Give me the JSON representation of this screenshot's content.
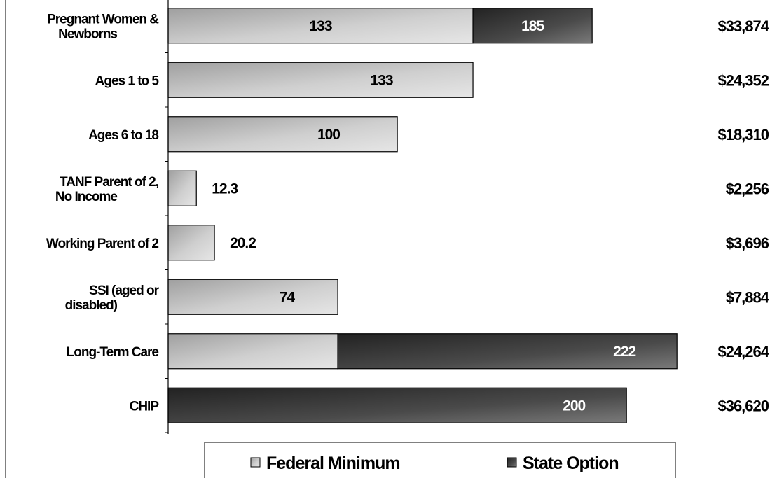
{
  "chart_data": {
    "type": "bar",
    "orientation": "horizontal",
    "stacked": true,
    "categories": [
      [
        "Pregnant Women &",
        "Newborns"
      ],
      [
        "Ages 1 to 5"
      ],
      [
        "Ages 6 to 18"
      ],
      [
        "TANF Parent of 2,",
        "No Income"
      ],
      [
        "Working Parent of 2"
      ],
      [
        "SSI (aged or",
        "disabled)"
      ],
      [
        "Long-Term Care"
      ],
      [
        "CHIP"
      ]
    ],
    "series": [
      {
        "name": "Federal Minimum",
        "color": "#c8c8c8",
        "values": [
          133,
          133,
          100,
          12.3,
          20.2,
          74,
          74,
          0
        ]
      },
      {
        "name": "State Option",
        "color": "#4a4a4a",
        "values": [
          52,
          0,
          0,
          0,
          0,
          0,
          148,
          200
        ]
      }
    ],
    "bar_labels": [
      "185",
      "133",
      "100",
      "12.3",
      "20.2",
      "74",
      "222",
      "200"
    ],
    "federal_labels": [
      "133",
      "",
      "",
      "",
      "",
      "",
      "",
      ""
    ],
    "annual_amounts": [
      "$33,874",
      "$24,352",
      "$18,310",
      "$2,256",
      "$3,696",
      "$7,884",
      "$24,264",
      "$36,620"
    ],
    "xlim": [
      0,
      225
    ],
    "legend": {
      "placement": "bottom",
      "items": [
        "Federal Minimum",
        "State Option"
      ]
    }
  }
}
